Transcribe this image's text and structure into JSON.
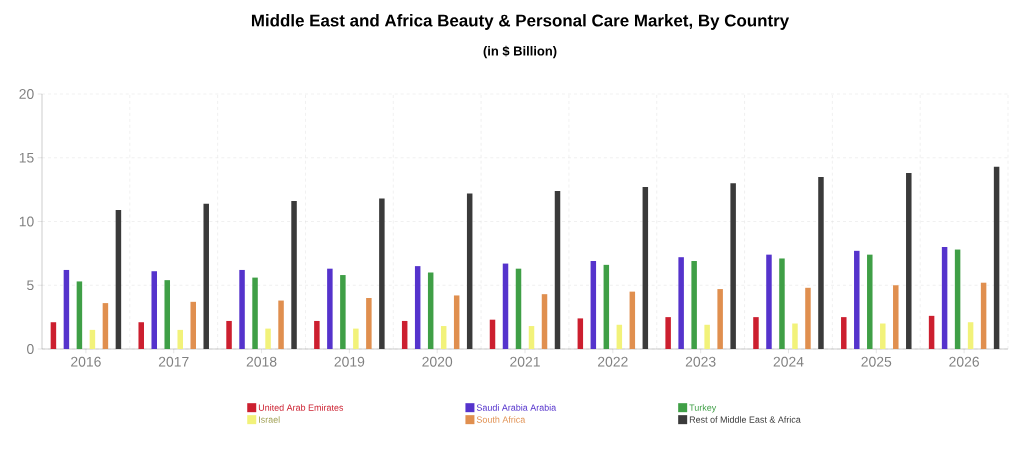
{
  "chart_data": {
    "type": "bar",
    "title": "Middle East and Africa Beauty & Personal Care Market, By Country",
    "subtitle": "(in $ Billion)",
    "categories": [
      "2016",
      "2017",
      "2018",
      "2019",
      "2020",
      "2021",
      "2022",
      "2023",
      "2024",
      "2025",
      "2026"
    ],
    "series": [
      {
        "name": "United Arab Emirates",
        "color": "#cc1f2f",
        "values": [
          2.1,
          2.1,
          2.2,
          2.2,
          2.2,
          2.3,
          2.4,
          2.5,
          2.5,
          2.5,
          2.6
        ]
      },
      {
        "name": "Saudi Arabia Arabia",
        "color": "#5533cc",
        "values": [
          6.2,
          6.1,
          6.2,
          6.3,
          6.5,
          6.7,
          6.9,
          7.2,
          7.4,
          7.7,
          8.0
        ]
      },
      {
        "name": "Turkey",
        "color": "#3f9f46",
        "values": [
          5.3,
          5.4,
          5.6,
          5.8,
          6.0,
          6.3,
          6.6,
          6.9,
          7.1,
          7.4,
          7.8
        ]
      },
      {
        "name": "Israel",
        "color": "#f2f27a",
        "values": [
          1.5,
          1.5,
          1.6,
          1.6,
          1.8,
          1.8,
          1.9,
          1.9,
          2.0,
          2.0,
          2.1
        ]
      },
      {
        "name": "South Africa",
        "color": "#e08f4f",
        "values": [
          3.6,
          3.7,
          3.8,
          4.0,
          4.2,
          4.3,
          4.5,
          4.7,
          4.8,
          5.0,
          5.2
        ]
      },
      {
        "name": "Rest of Middle East & Africa",
        "color": "#3a3a3a",
        "values": [
          10.9,
          11.4,
          11.6,
          11.8,
          12.2,
          12.4,
          12.7,
          13.0,
          13.5,
          13.8,
          14.3
        ]
      }
    ],
    "ylim": [
      0,
      20
    ],
    "yticks": [
      0,
      5,
      10,
      15,
      20
    ],
    "grid": true,
    "legend": "bottom"
  }
}
